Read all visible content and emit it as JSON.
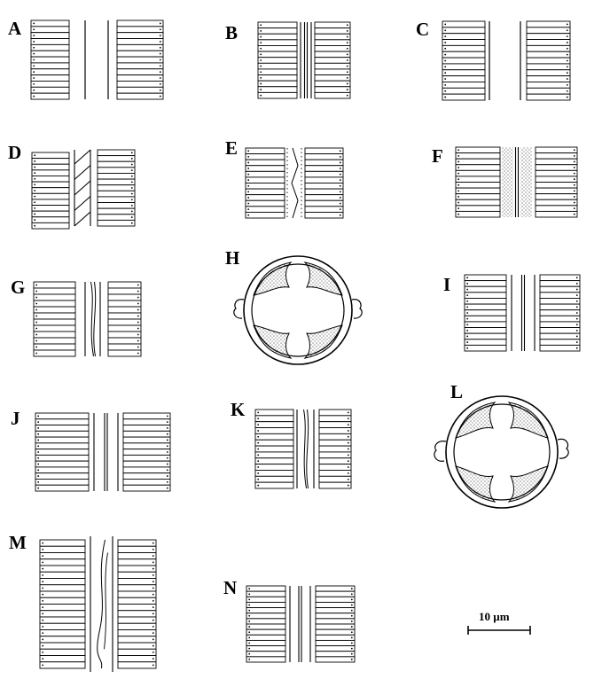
{
  "panels": [
    {
      "id": "A",
      "label": "A",
      "kind": "rows",
      "rows": 13,
      "axial": "two-lines"
    },
    {
      "id": "B",
      "label": "B",
      "kind": "rows",
      "rows": 13,
      "axial": "double-pair"
    },
    {
      "id": "C",
      "label": "C",
      "kind": "rows",
      "rows": 13,
      "axial": "two-lines"
    },
    {
      "id": "D",
      "label": "D",
      "kind": "rows",
      "rows": 13,
      "axial": "diagonal-ribs"
    },
    {
      "id": "E",
      "label": "E",
      "kind": "rows",
      "rows": 12,
      "axial": "dotted-zigzag"
    },
    {
      "id": "F",
      "label": "F",
      "kind": "rows",
      "rows": 12,
      "axial": "stippled-bands"
    },
    {
      "id": "G",
      "label": "G",
      "kind": "rows",
      "rows": 12,
      "axial": "wavy-lines"
    },
    {
      "id": "H",
      "label": "H",
      "kind": "girdle",
      "axial": "circular-with-stippled-thickenings"
    },
    {
      "id": "I",
      "label": "I",
      "kind": "rows",
      "rows": 13,
      "axial": "double-pair"
    },
    {
      "id": "J",
      "label": "J",
      "kind": "rows",
      "rows": 13,
      "axial": "double-pair"
    },
    {
      "id": "K",
      "label": "K",
      "kind": "rows",
      "rows": 13,
      "axial": "wavy-lines"
    },
    {
      "id": "L",
      "label": "L",
      "kind": "girdle",
      "axial": "circular-with-stippled-thickenings"
    },
    {
      "id": "M",
      "label": "M",
      "kind": "rows",
      "rows": 20,
      "axial": "curved-threads"
    },
    {
      "id": "N",
      "label": "N",
      "kind": "rows",
      "rows": 14,
      "axial": "double-pair"
    }
  ],
  "scale_bar": {
    "label": "10 µm"
  }
}
